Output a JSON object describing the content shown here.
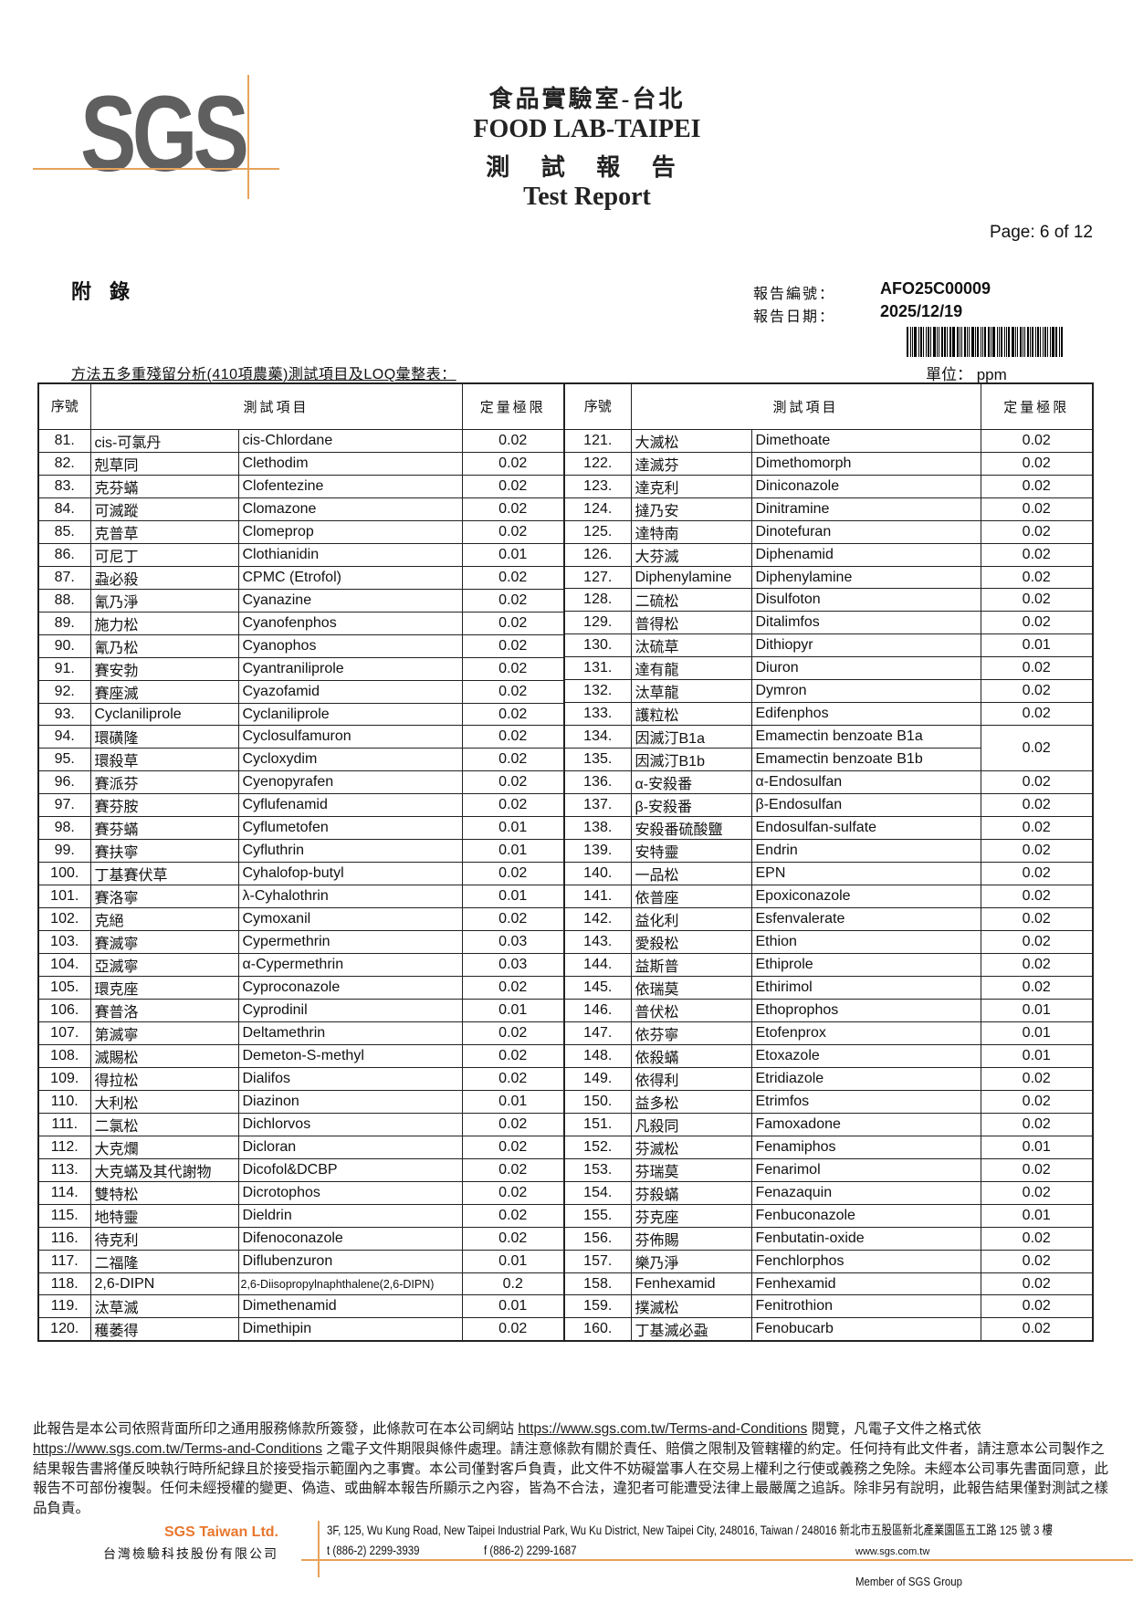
{
  "header": {
    "logo_text": "SGS",
    "title_zh": "食品實驗室-台北",
    "title_en": "FOOD LAB-TAIPEI",
    "report_zh": "測 試 報 告",
    "report_en": "Test Report",
    "page": "Page: 6 of 12"
  },
  "meta": {
    "appendix": "附錄",
    "report_no_label": "報告編號：",
    "report_no": "AFO25C00009",
    "report_date_label": "報告日期：",
    "report_date": "2025/12/19",
    "subtitle": "方法五多重殘留分析(410項農藥)測試項目及LOQ彙整表：",
    "unit": "單位： ppm"
  },
  "table": {
    "headers": {
      "no": "序號",
      "item": "測試項目",
      "loq": "定量極限"
    },
    "left_rows": [
      [
        "81.",
        "cis-可氯丹",
        "cis-Chlordane",
        "0.02"
      ],
      [
        "82.",
        "剋草同",
        "Clethodim",
        "0.02"
      ],
      [
        "83.",
        "克芬蟎",
        "Clofentezine",
        "0.02"
      ],
      [
        "84.",
        "可滅蹤",
        "Clomazone",
        "0.02"
      ],
      [
        "85.",
        "克普草",
        "Clomeprop",
        "0.02"
      ],
      [
        "86.",
        "可尼丁",
        "Clothianidin",
        "0.01"
      ],
      [
        "87.",
        "蝨必殺",
        "CPMC (Etrofol)",
        "0.02"
      ],
      [
        "88.",
        "氰乃淨",
        "Cyanazine",
        "0.02"
      ],
      [
        "89.",
        "施力松",
        "Cyanofenphos",
        "0.02"
      ],
      [
        "90.",
        "氰乃松",
        "Cyanophos",
        "0.02"
      ],
      [
        "91.",
        "賽安勃",
        "Cyantraniliprole",
        "0.02"
      ],
      [
        "92.",
        "賽座滅",
        "Cyazofamid",
        "0.02"
      ],
      [
        "93.",
        "Cyclaniliprole",
        "Cyclaniliprole",
        "0.02"
      ],
      [
        "94.",
        "環磺隆",
        "Cyclosulfamuron",
        "0.02"
      ],
      [
        "95.",
        "環殺草",
        "Cycloxydim",
        "0.02"
      ],
      [
        "96.",
        "賽派芬",
        "Cyenopyrafen",
        "0.02"
      ],
      [
        "97.",
        "賽芬胺",
        "Cyflufenamid",
        "0.02"
      ],
      [
        "98.",
        "賽芬蟎",
        "Cyflumetofen",
        "0.01"
      ],
      [
        "99.",
        "賽扶寧",
        "Cyfluthrin",
        "0.01"
      ],
      [
        "100.",
        "丁基賽伏草",
        "Cyhalofop-butyl",
        "0.02"
      ],
      [
        "101.",
        "賽洛寧",
        "λ-Cyhalothrin",
        "0.01"
      ],
      [
        "102.",
        "克絕",
        "Cymoxanil",
        "0.02"
      ],
      [
        "103.",
        "賽滅寧",
        "Cypermethrin",
        "0.03"
      ],
      [
        "104.",
        "亞滅寧",
        "α-Cypermethrin",
        "0.03"
      ],
      [
        "105.",
        "環克座",
        "Cyproconazole",
        "0.02"
      ],
      [
        "106.",
        "賽普洛",
        "Cyprodinil",
        "0.01"
      ],
      [
        "107.",
        "第滅寧",
        "Deltamethrin",
        "0.02"
      ],
      [
        "108.",
        "滅賜松",
        "Demeton-S-methyl",
        "0.02"
      ],
      [
        "109.",
        "得拉松",
        "Dialifos",
        "0.02"
      ],
      [
        "110.",
        "大利松",
        "Diazinon",
        "0.01"
      ],
      [
        "111.",
        "二氯松",
        "Dichlorvos",
        "0.02"
      ],
      [
        "112.",
        "大克爛",
        "Dicloran",
        "0.02"
      ],
      [
        "113.",
        "大克蟎及其代謝物",
        "Dicofol&DCBP",
        "0.02"
      ],
      [
        "114.",
        "雙特松",
        "Dicrotophos",
        "0.02"
      ],
      [
        "115.",
        "地特靈",
        "Dieldrin",
        "0.02"
      ],
      [
        "116.",
        "待克利",
        "Difenoconazole",
        "0.02"
      ],
      [
        "117.",
        "二福隆",
        "Diflubenzuron",
        "0.01"
      ],
      [
        "118.",
        "2,6-DIPN",
        "2,6-Diisopropylnaphthalene(2,6-DIPN)",
        "0.2"
      ],
      [
        "119.",
        "汰草滅",
        "Dimethenamid",
        "0.01"
      ],
      [
        "120.",
        "穫萎得",
        "Dimethipin",
        "0.02"
      ]
    ],
    "right_rows": [
      [
        "121.",
        "大滅松",
        "Dimethoate",
        "0.02"
      ],
      [
        "122.",
        "達滅芬",
        "Dimethomorph",
        "0.02"
      ],
      [
        "123.",
        "達克利",
        "Diniconazole",
        "0.02"
      ],
      [
        "124.",
        "撻乃安",
        "Dinitramine",
        "0.02"
      ],
      [
        "125.",
        "達特南",
        "Dinotefuran",
        "0.02"
      ],
      [
        "126.",
        "大芬滅",
        "Diphenamid",
        "0.02"
      ],
      [
        "127.",
        "Diphenylamine",
        "Diphenylamine",
        "0.02"
      ],
      [
        "128.",
        "二硫松",
        "Disulfoton",
        "0.02"
      ],
      [
        "129.",
        "普得松",
        "Ditalimfos",
        "0.02"
      ],
      [
        "130.",
        "汰硫草",
        "Dithiopyr",
        "0.01"
      ],
      [
        "131.",
        "達有龍",
        "Diuron",
        "0.02"
      ],
      [
        "132.",
        "汰草龍",
        "Dymron",
        "0.02"
      ],
      [
        "133.",
        "護粒松",
        "Edifenphos",
        "0.02"
      ],
      [
        "134.",
        "因滅汀B1a",
        "Emamectin benzoate B1a",
        "0.02"
      ],
      [
        "135.",
        "因滅汀B1b",
        "Emamectin benzoate B1b",
        ""
      ],
      [
        "136.",
        "α-安殺番",
        "α-Endosulfan",
        "0.02"
      ],
      [
        "137.",
        "β-安殺番",
        "β-Endosulfan",
        "0.02"
      ],
      [
        "138.",
        "安殺番硫酸鹽",
        "Endosulfan-sulfate",
        "0.02"
      ],
      [
        "139.",
        "安特靈",
        "Endrin",
        "0.02"
      ],
      [
        "140.",
        "一品松",
        "EPN",
        "0.02"
      ],
      [
        "141.",
        "依普座",
        "Epoxiconazole",
        "0.02"
      ],
      [
        "142.",
        "益化利",
        "Esfenvalerate",
        "0.02"
      ],
      [
        "143.",
        "愛殺松",
        "Ethion",
        "0.02"
      ],
      [
        "144.",
        "益斯普",
        "Ethiprole",
        "0.02"
      ],
      [
        "145.",
        "依瑞莫",
        "Ethirimol",
        "0.02"
      ],
      [
        "146.",
        "普伏松",
        "Ethoprophos",
        "0.01"
      ],
      [
        "147.",
        "依芬寧",
        "Etofenprox",
        "0.01"
      ],
      [
        "148.",
        "依殺蟎",
        "Etoxazole",
        "0.01"
      ],
      [
        "149.",
        "依得利",
        "Etridiazole",
        "0.02"
      ],
      [
        "150.",
        "益多松",
        "Etrimfos",
        "0.02"
      ],
      [
        "151.",
        "凡殺同",
        "Famoxadone",
        "0.02"
      ],
      [
        "152.",
        "芬滅松",
        "Fenamiphos",
        "0.01"
      ],
      [
        "153.",
        "芬瑞莫",
        "Fenarimol",
        "0.02"
      ],
      [
        "154.",
        "芬殺蟎",
        "Fenazaquin",
        "0.02"
      ],
      [
        "155.",
        "芬克座",
        "Fenbuconazole",
        "0.01"
      ],
      [
        "156.",
        "芬佈賜",
        "Fenbutatin-oxide",
        "0.02"
      ],
      [
        "157.",
        "樂乃淨",
        "Fenchlorphos",
        "0.02"
      ],
      [
        "158.",
        "Fenhexamid",
        "Fenhexamid",
        "0.02"
      ],
      [
        "159.",
        "撲滅松",
        "Fenitrothion",
        "0.02"
      ],
      [
        "160.",
        "丁基滅必蝨",
        "Fenobucarb",
        "0.02"
      ]
    ]
  },
  "footer": {
    "p1": "此報告是本公司依照背面所印之通用服務條款所簽發，此條款可在本公司網站 ",
    "link1": "https://www.sgs.com.tw/Terms-and-Conditions",
    "p2": " 閱覽，凡電子文件之格式依 ",
    "link2": "https://www.sgs.com.tw/Terms-and-Conditions",
    "p3": " 之電子文件期限與條件處理。請注意條款有關於責任、賠償之限制及管轄權的約定。任何持有此文件者，請注意本公司製作之結果報告書將僅反映執行時所紀錄且於接受指示範圍內之事實。本公司僅對客戶負責，此文件不妨礙當事人在交易上權利之行使或義務之免除。未經本公司事先書面同意，此報告不可部份複製。任何未經授權的變更、偽造、或曲解本報告所顯示之內容，皆為不合法，違犯者可能遭受法律上最嚴厲之追訴。除非另有說明，此報告結果僅對測試之樣品負責。",
    "company_en": "SGS Taiwan Ltd.",
    "company_zh": "台灣檢驗科技股份有限公司",
    "address": "3F, 125, Wu Kung Road, New Taipei Industrial Park, Wu Ku District, New Taipei City, 248016, Taiwan / 248016 新北市五股區新北產業園區五工路 125 號 3 樓",
    "tel": "t (886-2) 2299-3939",
    "fax": "f (886-2) 2299-1687",
    "web": "www.sgs.com.tw",
    "member": "Member of SGS Group"
  },
  "colors": {
    "brand_orange": "#e8772e",
    "logo_gray": "#5f5f5f",
    "rule_orange": "#e8a25a"
  }
}
